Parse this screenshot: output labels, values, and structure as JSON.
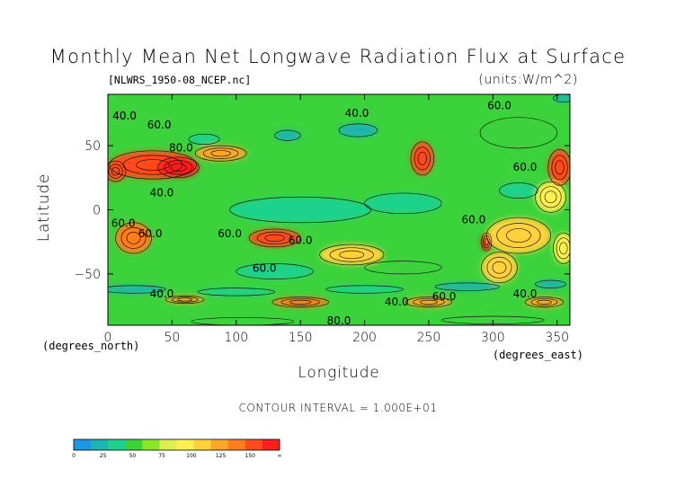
{
  "chart_data": {
    "type": "heatmap",
    "title": "Monthly Mean Net Longwave Radiation Flux at Surface",
    "subtitle": "[NLWRS_1950-08_NCEP.nc]",
    "units": "(units:W/m^2)",
    "xlabel": "Longitude",
    "ylabel": "Latitude",
    "x_unit_label": "(degrees_east)",
    "y_unit_label": "(degrees_north)",
    "xlim": [
      0,
      360
    ],
    "ylim": [
      -90,
      90
    ],
    "x_ticks": [
      0,
      50,
      100,
      150,
      200,
      250,
      300,
      350
    ],
    "y_ticks": [
      50,
      0,
      -50
    ],
    "contour_interval_text": "CONTOUR INTERVAL = 1.000E+01",
    "colorbar": {
      "ticks": [
        "0",
        "25",
        "50",
        "75",
        "100",
        "125",
        "150",
        "∞"
      ],
      "colors": [
        "#1e96e6",
        "#1fb4b4",
        "#1ed28c",
        "#3cd23c",
        "#8ce628",
        "#dcee50",
        "#fff050",
        "#ffd23c",
        "#ffa528",
        "#ff7d1e",
        "#ff4b1e",
        "#ff1e1e"
      ]
    },
    "contour_labels": [
      {
        "text": "40.0",
        "lon": 13,
        "lat": 73
      },
      {
        "text": "60.0",
        "lon": 40,
        "lat": 66
      },
      {
        "text": "40.0",
        "lon": 194,
        "lat": 75
      },
      {
        "text": "60.0",
        "lon": 305,
        "lat": 81
      },
      {
        "text": "80.0",
        "lon": 57,
        "lat": 48
      },
      {
        "text": "40.0",
        "lon": 42,
        "lat": 13
      },
      {
        "text": "60.0",
        "lon": 325,
        "lat": 33
      },
      {
        "text": "60.0",
        "lon": 12,
        "lat": -11
      },
      {
        "text": "60.0",
        "lon": 33,
        "lat": -19
      },
      {
        "text": "60.0",
        "lon": 95,
        "lat": -19
      },
      {
        "text": "60.0",
        "lon": 150,
        "lat": -24
      },
      {
        "text": "60.0",
        "lon": 285,
        "lat": -8
      },
      {
        "text": "60.0",
        "lon": 122,
        "lat": -46
      },
      {
        "text": "40.0",
        "lon": 42,
        "lat": -66
      },
      {
        "text": "40.0",
        "lon": 225,
        "lat": -72
      },
      {
        "text": "60.0",
        "lon": 262,
        "lat": -68
      },
      {
        "text": "40.0",
        "lon": 325,
        "lat": -66
      },
      {
        "text": "80.0",
        "lon": 180,
        "lat": -87
      }
    ],
    "field_blobs": [
      {
        "lon": 35,
        "lat": 35,
        "rlon": 34,
        "rlat": 11,
        "value": 135
      },
      {
        "lon": 55,
        "lat": 33,
        "rlon": 16,
        "rlat": 8,
        "value": 160
      },
      {
        "lon": 88,
        "lat": 44,
        "rlon": 20,
        "rlat": 6,
        "value": 110
      },
      {
        "lon": 6,
        "lat": 30,
        "rlon": 8,
        "rlat": 8,
        "value": 125
      },
      {
        "lon": 245,
        "lat": 40,
        "rlon": 9,
        "rlat": 13,
        "value": 130
      },
      {
        "lon": 352,
        "lat": 33,
        "rlon": 9,
        "rlat": 14,
        "value": 130
      },
      {
        "lon": 20,
        "lat": -22,
        "rlon": 14,
        "rlat": 12,
        "value": 120
      },
      {
        "lon": 130,
        "lat": -22,
        "rlon": 20,
        "rlat": 7,
        "value": 125
      },
      {
        "lon": 295,
        "lat": -25,
        "rlon": 4,
        "rlat": 7,
        "value": 165
      },
      {
        "lon": 320,
        "lat": -20,
        "rlon": 25,
        "rlat": 14,
        "value": 95
      },
      {
        "lon": 305,
        "lat": -45,
        "rlon": 14,
        "rlat": 12,
        "value": 90
      },
      {
        "lon": 355,
        "lat": -30,
        "rlon": 8,
        "rlat": 12,
        "value": 85
      },
      {
        "lon": 190,
        "lat": -35,
        "rlon": 25,
        "rlat": 8,
        "value": 88
      },
      {
        "lon": 345,
        "lat": 10,
        "rlon": 12,
        "rlat": 12,
        "value": 80
      },
      {
        "lon": 150,
        "lat": -72,
        "rlon": 22,
        "rlat": 4,
        "value": 115
      },
      {
        "lon": 250,
        "lat": -72,
        "rlon": 18,
        "rlat": 4,
        "value": 100
      },
      {
        "lon": 340,
        "lat": -72,
        "rlon": 15,
        "rlat": 4,
        "value": 110
      },
      {
        "lon": 60,
        "lat": -70,
        "rlon": 15,
        "rlat": 3,
        "value": 100
      },
      {
        "lon": 150,
        "lat": 0,
        "rlon": 55,
        "rlat": 10,
        "value": 25
      },
      {
        "lon": 230,
        "lat": 5,
        "rlon": 30,
        "rlat": 8,
        "value": 30
      },
      {
        "lon": 320,
        "lat": 15,
        "rlon": 15,
        "rlat": 6,
        "value": 28
      },
      {
        "lon": 130,
        "lat": -48,
        "rlon": 30,
        "rlat": 6,
        "value": 35
      },
      {
        "lon": 230,
        "lat": -45,
        "rlon": 30,
        "rlat": 5,
        "value": 40
      },
      {
        "lon": 320,
        "lat": 60,
        "rlon": 30,
        "rlat": 12,
        "value": 40
      },
      {
        "lon": 195,
        "lat": 62,
        "rlon": 15,
        "rlat": 5,
        "value": 20
      },
      {
        "lon": 140,
        "lat": 58,
        "rlon": 10,
        "rlat": 4,
        "value": 22
      },
      {
        "lon": 75,
        "lat": 55,
        "rlon": 12,
        "rlat": 4,
        "value": 25
      },
      {
        "lon": 355,
        "lat": 87,
        "rlon": 8,
        "rlat": 3,
        "value": 15
      },
      {
        "lon": 20,
        "lat": -62,
        "rlon": 25,
        "rlat": 3,
        "value": 20
      },
      {
        "lon": 100,
        "lat": -64,
        "rlon": 30,
        "rlat": 3,
        "value": 25
      },
      {
        "lon": 200,
        "lat": -62,
        "rlon": 30,
        "rlat": 3,
        "value": 25
      },
      {
        "lon": 280,
        "lat": -60,
        "rlon": 25,
        "rlat": 3,
        "value": 20
      },
      {
        "lon": 345,
        "lat": -58,
        "rlon": 12,
        "rlat": 3,
        "value": 20
      },
      {
        "lon": 105,
        "lat": -87,
        "rlon": 40,
        "rlat": 3,
        "value": 40
      },
      {
        "lon": 300,
        "lat": -86,
        "rlon": 40,
        "rlat": 3,
        "value": 40
      }
    ]
  }
}
